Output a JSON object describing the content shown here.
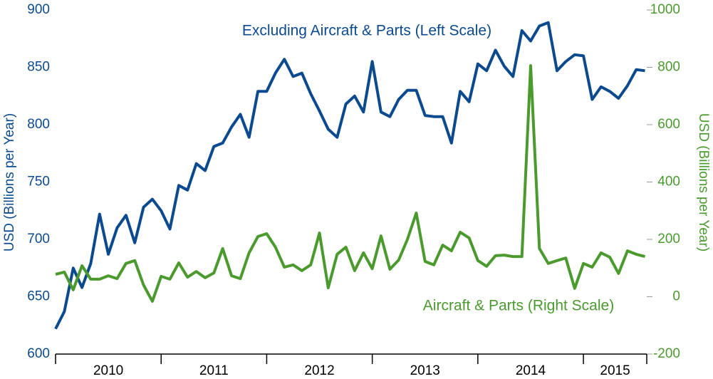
{
  "chart_data": {
    "type": "line",
    "x": [
      2010,
      2010.083,
      2010.167,
      2010.25,
      2010.333,
      2010.417,
      2010.5,
      2010.583,
      2010.667,
      2010.75,
      2010.833,
      2010.917,
      2011,
      2011.083,
      2011.167,
      2011.25,
      2011.333,
      2011.417,
      2011.5,
      2011.583,
      2011.667,
      2011.75,
      2011.833,
      2011.917,
      2012,
      2012.083,
      2012.167,
      2012.25,
      2012.333,
      2012.417,
      2012.5,
      2012.583,
      2012.667,
      2012.75,
      2012.833,
      2012.917,
      2013,
      2013.083,
      2013.167,
      2013.25,
      2013.333,
      2013.417,
      2013.5,
      2013.583,
      2013.667,
      2013.75,
      2013.833,
      2013.917,
      2014,
      2014.083,
      2014.167,
      2014.25,
      2014.333,
      2014.417,
      2014.5,
      2014.583,
      2014.667,
      2014.75,
      2014.833,
      2014.917,
      2015,
      2015.083,
      2015.167,
      2015.25,
      2015.333,
      2015.417,
      2015.5,
      2015.583
    ],
    "series": [
      {
        "name": "Excluding Aircraft & Parts (Left Scale)",
        "color": "#0b4a8f",
        "axis": "y",
        "values": [
          622,
          637,
          675,
          658,
          679,
          722,
          687,
          710,
          721,
          697,
          728,
          735,
          725,
          709,
          747,
          743,
          766,
          760,
          781,
          784,
          798,
          809,
          789,
          829,
          829,
          845,
          857,
          842,
          845,
          827,
          812,
          796,
          789,
          818,
          825,
          811,
          855,
          811,
          807,
          822,
          830,
          830,
          808,
          807,
          807,
          784,
          829,
          820,
          853,
          847,
          865,
          851,
          842,
          882,
          873,
          886,
          889,
          847,
          855,
          861,
          860,
          822,
          833,
          829,
          823,
          834,
          848,
          847
        ]
      },
      {
        "name": "Aircraft & Parts (Right Scale)",
        "color": "#4a9a2e",
        "axis": "y2",
        "values": [
          78,
          86,
          24,
          108,
          61,
          61,
          73,
          63,
          116,
          126,
          41,
          -16,
          71,
          61,
          118,
          68,
          88,
          66,
          83,
          168,
          73,
          63,
          153,
          210,
          220,
          173,
          103,
          111,
          91,
          111,
          222,
          31,
          148,
          173,
          91,
          153,
          98,
          212,
          96,
          128,
          200,
          292,
          123,
          111,
          180,
          160,
          225,
          205,
          126,
          106,
          143,
          145,
          140,
          140,
          806,
          168,
          116,
          126,
          135,
          29,
          116,
          103,
          153,
          138,
          81,
          160,
          148,
          140
        ]
      }
    ],
    "ylabel": "USD (Billions per Year)",
    "y2label": "USD (Billions per Year)",
    "xlim": [
      2010,
      2015.6
    ],
    "xticks": [
      2010,
      2011,
      2012,
      2013,
      2014,
      2015
    ],
    "ylim": [
      600,
      900
    ],
    "yticks": [
      600,
      650,
      700,
      750,
      800,
      850,
      900
    ],
    "y2lim": [
      -200,
      1000
    ],
    "y2ticks": [
      -200,
      0,
      200,
      400,
      600,
      800,
      1000
    ],
    "grid": false
  }
}
